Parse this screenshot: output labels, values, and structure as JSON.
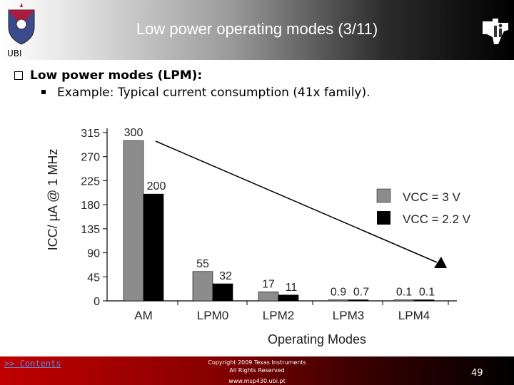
{
  "slide": {
    "title": "Low power operating modes (3/11)",
    "org_label": "UBI",
    "bullet_main": "Low power modes (LPM):",
    "bullet_sub": "Example: Typical current consumption (41x family).",
    "footer_link": ">> Contents",
    "copyright_line1": "Copyright 2009 Texas Instruments",
    "copyright_line2": "All Rights Reserved",
    "url": "www.msp430.ubi.pt",
    "page_number": "49"
  },
  "chart_data": {
    "type": "bar",
    "title": "",
    "xlabel": "Operating Modes",
    "ylabel": "ICC/ µA @ 1 MHz",
    "categories": [
      "AM",
      "LPM0",
      "LPM2",
      "LPM3",
      "LPM4"
    ],
    "series": [
      {
        "name": "VCC = 3 V",
        "values": [
          300,
          55,
          17,
          0.9,
          0.1
        ],
        "labels": [
          "300",
          "55",
          "17",
          "0.9",
          "0.1"
        ],
        "color": "#8c8c8c"
      },
      {
        "name": "VCC = 2.2 V",
        "values": [
          200,
          32,
          11,
          0.7,
          0.1
        ],
        "labels": [
          "200",
          "32",
          "11",
          "0.7",
          "0.1"
        ],
        "color": "#000000"
      }
    ],
    "yticks": [
      "0",
      "45",
      "90",
      "135",
      "180",
      "225",
      "270",
      "315"
    ],
    "ylim": [
      0,
      315
    ],
    "grid": false,
    "legend": "right",
    "annotation": "downward trend arrow"
  }
}
